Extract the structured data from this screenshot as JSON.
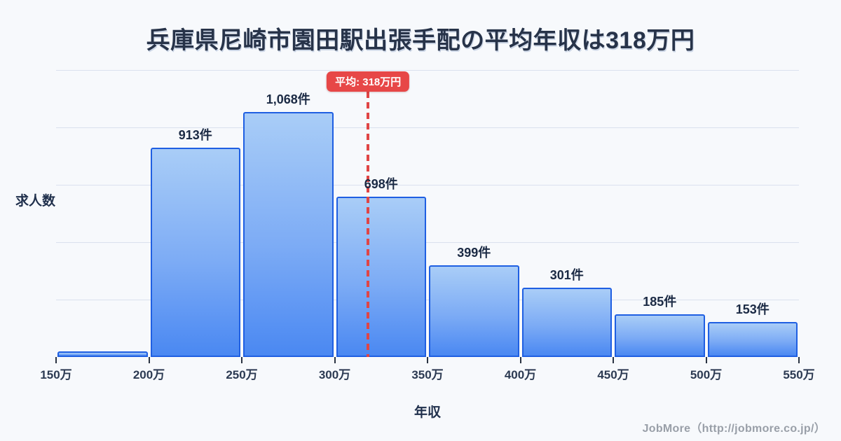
{
  "title": "兵庫県尼崎市園田駅出張手配の平均年収は318万円",
  "chart_data": {
    "type": "bar",
    "title": "兵庫県尼崎市園田駅出張手配の平均年収は318万円",
    "xlabel": "年収",
    "ylabel": "求人数",
    "x_tick_labels": [
      "150万",
      "200万",
      "250万",
      "300万",
      "350万",
      "400万",
      "450万",
      "500万",
      "550万"
    ],
    "bin_edges": [
      150,
      200,
      250,
      300,
      350,
      400,
      450,
      500,
      550
    ],
    "values": [
      25,
      913,
      1068,
      698,
      399,
      301,
      185,
      153
    ],
    "bar_labels": [
      "",
      "913件",
      "1,068件",
      "698件",
      "399件",
      "301件",
      "185件",
      "153件"
    ],
    "ylim": [
      0,
      1250
    ],
    "grid_step": 250,
    "grid": true,
    "legend": "none",
    "average_line": {
      "value": 318,
      "label": "平均: 318万円"
    }
  },
  "footer": {
    "credit": "JobMore（http://jobmore.co.jp/）"
  },
  "colors": {
    "background": "#f7f9fc",
    "title_text": "#273349",
    "bar_fill_top": "#a9cdf7",
    "bar_fill_bottom": "#4a88f2",
    "bar_border": "#1f5fe2",
    "bar_label_text": "#1b2a44",
    "grid_line": "#dae1ee",
    "average_red": "#e74747",
    "axis_text": "#2c3a52",
    "footer_text": "#999fa8"
  }
}
